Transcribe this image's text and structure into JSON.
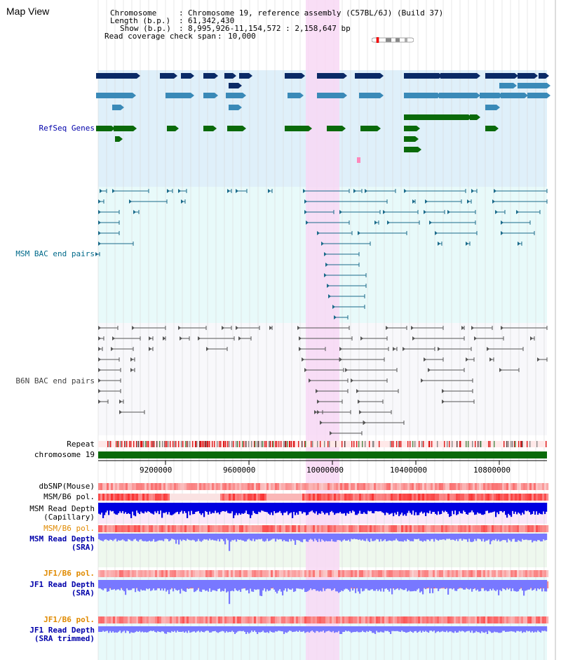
{
  "page_title": "Map View",
  "header": {
    "chromosome_key": "Chromosome",
    "chromosome_val": "Chromosome 19, reference assembly (C57BL/6J) (Build 37)",
    "length_key": "Length (b.p.)",
    "length_val": "61,342,430",
    "show_key": "Show (b.p.)",
    "show_val": "8,995,926-11,154,572 : 2,158,647 bp",
    "coverage_key": "Read coverage check span",
    "coverage_val": "10,000"
  },
  "tracks": {
    "refseq": "RefSeq Genes",
    "msm_bac": "MSM BAC end pairs",
    "b6n_bac": "B6N BAC end pairs",
    "repeat": "Repeat",
    "chromosome": "chromosome 19",
    "dbsnp": "dbSNP(Mouse)",
    "msm_b6_pol_1": "MSM/B6 pol.",
    "msm_depth_cap_1": "MSM Read Depth",
    "msm_depth_cap_2": "(Capillary)",
    "msm_b6_pol_2": "MSM/B6 pol.",
    "msm_depth_sra_1": "MSM Read Depth",
    "msm_depth_sra_2": "(SRA)",
    "jf1_pol_1": "JF1/B6 pol.",
    "jf1_depth_1": "JF1 Read Depth",
    "jf1_depth_2": "(SRA)",
    "jf1_pol_2": "JF1/B6 pol.",
    "jf1_trim_1": "JF1 Read Depth",
    "jf1_trim_2": "(SRA trimmed)"
  },
  "axis": {
    "ticks": [
      "9200000",
      "9600000",
      "10000000",
      "10400000",
      "10800000"
    ]
  },
  "colors": {
    "refseq_bg": "#dff0fa",
    "bac_bg": "#e8fafa",
    "highlight": "#f8d8f4",
    "gene_dark": "#0a2a66",
    "gene_mid": "#3a8ab8",
    "gene_green": "#0a6a0a",
    "bac_line": "#1a6a8a",
    "b6n_line": "#555555",
    "chromosome_bar": "#0a6a0a",
    "depth_blue": "#0000e0",
    "depth_light": "#7878ff",
    "label_blue": "#0000aa",
    "label_teal": "#006a8a",
    "label_orange": "#e08a00"
  }
}
